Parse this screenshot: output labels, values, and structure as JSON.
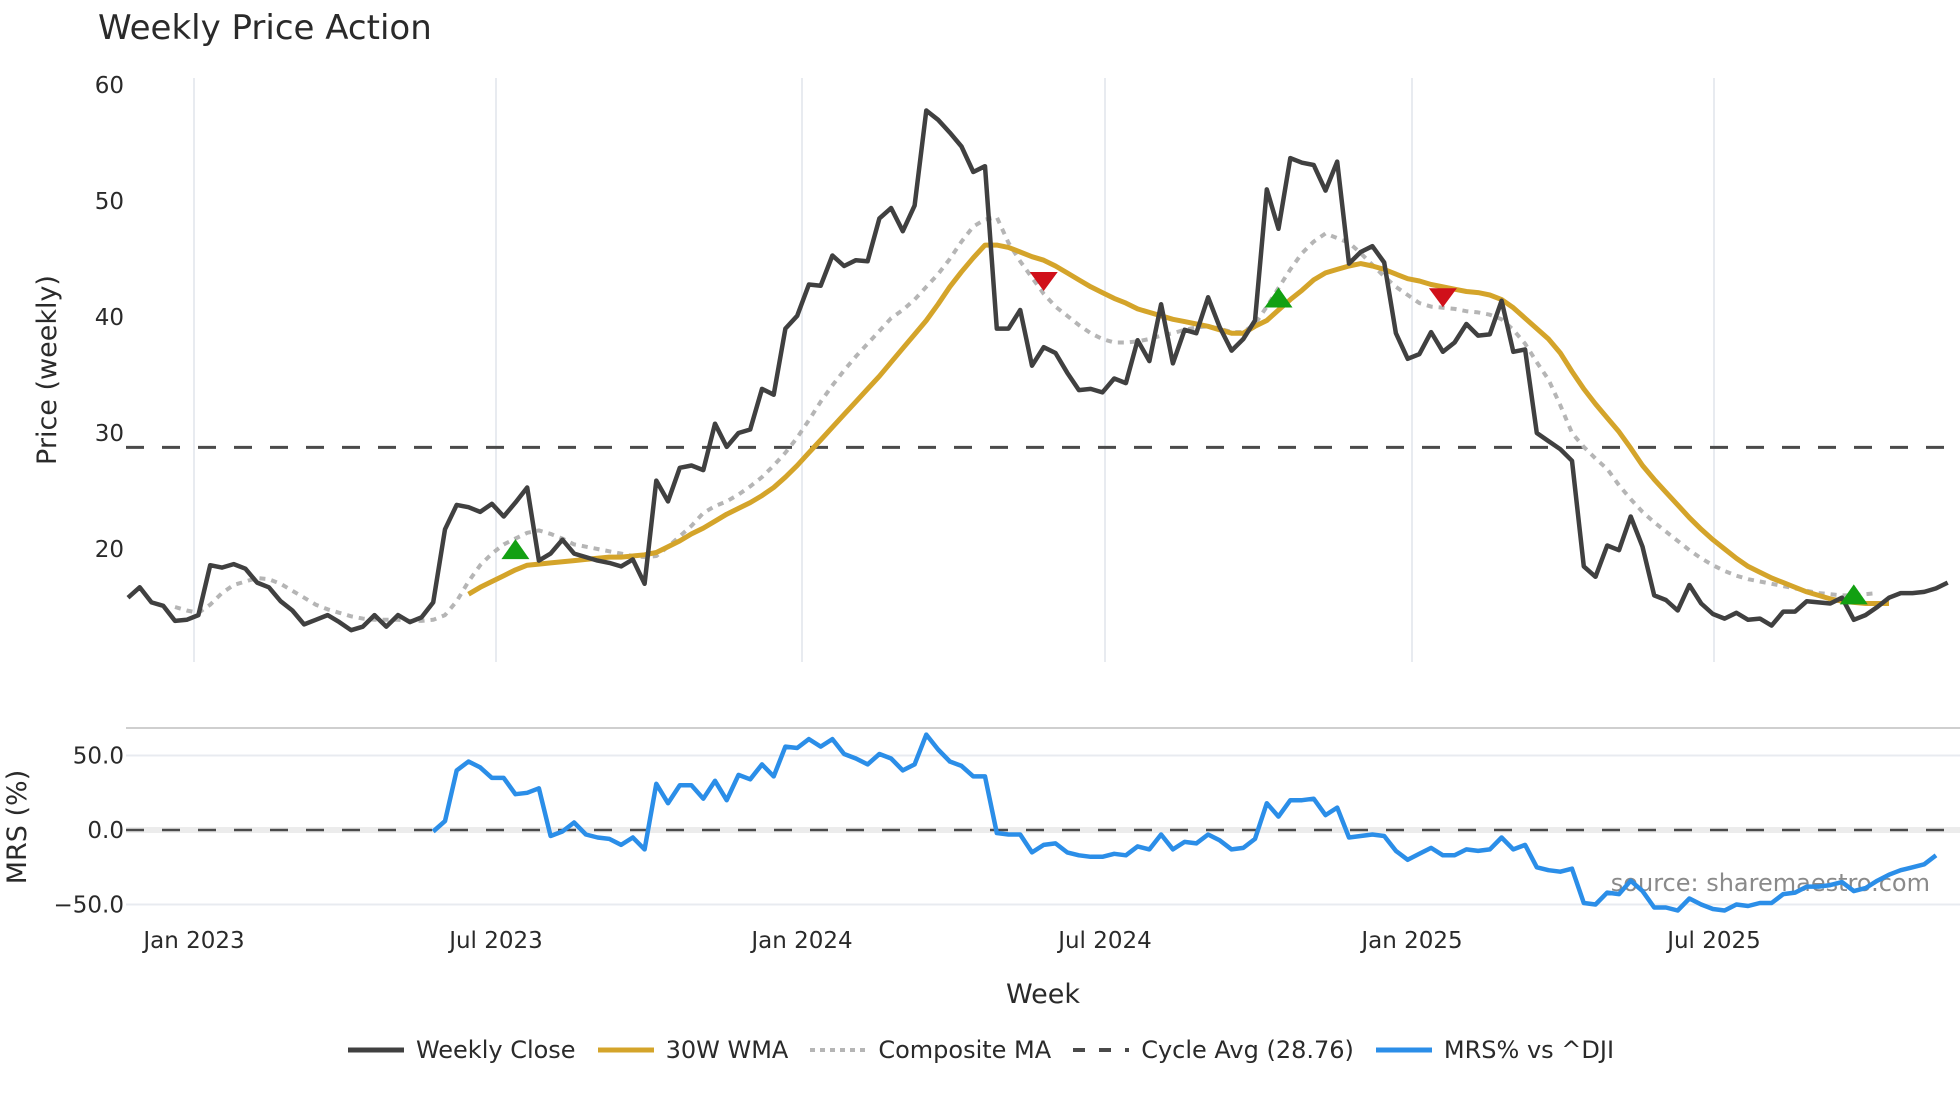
{
  "title": "Weekly Price Action",
  "colors": {
    "weekly_close": "#404040",
    "wma": "#d4a42a",
    "composite_ma": "#b5b5b5",
    "cycle_avg": "#4a4a4a",
    "mrs": "#2b8ee8",
    "buy_marker": "#12a012",
    "sell_marker": "#d0101a",
    "grid": "#e8ebf0"
  },
  "legend": [
    {
      "key": "weekly_close",
      "label": "Weekly Close",
      "style": "solid"
    },
    {
      "key": "wma",
      "label": "30W WMA",
      "style": "solid"
    },
    {
      "key": "composite_ma",
      "label": "Composite MA",
      "style": "dotted"
    },
    {
      "key": "cycle_avg",
      "label": "Cycle Avg (28.76)",
      "style": "dashed"
    },
    {
      "key": "mrs",
      "label": "MRS% vs ^DJI",
      "style": "solid"
    }
  ],
  "watermark": "source: sharemaestro.com",
  "chart_data": [
    {
      "type": "line",
      "title": "Weekly Price Action",
      "xlabel": "Week",
      "ylabel": "Price (weekly)",
      "ylim": [
        10.5,
        61
      ],
      "yticks": [
        20,
        30,
        40,
        50,
        60
      ],
      "xticks": [
        "Jan 2023",
        "Jul 2023",
        "Jan 2024",
        "Jul 2024",
        "Jan 2025",
        "Jul 2025"
      ],
      "grid": true,
      "x_start": "2022-11-21",
      "x_step_weeks": 1,
      "cycle_avg": 28.76,
      "series": [
        {
          "name": "Weekly Close",
          "key": "weekly_close",
          "start_index": 0,
          "values": [
            15.8,
            16.7,
            15.4,
            15.1,
            13.8,
            13.9,
            14.3,
            18.6,
            18.4,
            18.7,
            18.3,
            17.1,
            16.7,
            15.5,
            14.7,
            13.5,
            13.9,
            14.3,
            13.7,
            13.0,
            13.3,
            14.3,
            13.3,
            14.3,
            13.7,
            14.1,
            15.4,
            21.7,
            23.8,
            23.6,
            23.2,
            23.9,
            22.8,
            24.0,
            25.3,
            19.0,
            19.6,
            20.8,
            19.6,
            19.3,
            19.0,
            18.8,
            18.5,
            19.1,
            17.0,
            25.9,
            24.1,
            27.0,
            27.2,
            26.8,
            30.8,
            28.8,
            30.0,
            30.3,
            33.8,
            33.3,
            39.0,
            40.1,
            42.8,
            42.7,
            45.3,
            44.4,
            44.9,
            44.8,
            48.5,
            49.4,
            47.4,
            49.6,
            57.8,
            57.0,
            55.9,
            54.7,
            52.5,
            53.0,
            39.0,
            39.0,
            40.6,
            35.8,
            37.4,
            36.9,
            35.2,
            33.7,
            33.8,
            33.5,
            34.7,
            34.3,
            38.0,
            36.2,
            41.1,
            36.0,
            38.9,
            38.6,
            41.7,
            39.1,
            37.1,
            38.1,
            39.7,
            51.0,
            47.6,
            53.7,
            53.3,
            53.1,
            50.9,
            53.4,
            44.6,
            45.6,
            46.1,
            44.7,
            38.6,
            36.4,
            36.8,
            38.7,
            37.0,
            37.8,
            39.4,
            38.4,
            38.5,
            41.4,
            37.0,
            37.2,
            30.0,
            29.3,
            28.6,
            27.6,
            18.5,
            17.6,
            20.3,
            19.9,
            22.8,
            20.2,
            16.0,
            15.6,
            14.7,
            16.9,
            15.3,
            14.4,
            14.0,
            14.5,
            13.9,
            14.0,
            13.4,
            14.6,
            14.6,
            15.5,
            15.4,
            15.3,
            15.8,
            13.9,
            14.3,
            15.0,
            15.8,
            16.2,
            16.2,
            16.3,
            16.6,
            17.1
          ]
        },
        {
          "name": "30W WMA",
          "key": "wma",
          "start_index": 29,
          "values": [
            16.1,
            16.7,
            17.2,
            17.7,
            18.2,
            18.6,
            18.7,
            18.8,
            18.9,
            19.0,
            19.1,
            19.2,
            19.3,
            19.3,
            19.4,
            19.5,
            19.7,
            20.2,
            20.7,
            21.3,
            21.8,
            22.4,
            23.0,
            23.5,
            24.0,
            24.6,
            25.3,
            26.2,
            27.2,
            28.3,
            29.4,
            30.5,
            31.6,
            32.7,
            33.8,
            34.9,
            36.1,
            37.3,
            38.5,
            39.7,
            41.1,
            42.6,
            43.9,
            45.1,
            46.2,
            46.2,
            46.0,
            45.6,
            45.2,
            44.9,
            44.4,
            43.8,
            43.2,
            42.6,
            42.1,
            41.6,
            41.2,
            40.7,
            40.4,
            40.1,
            39.8,
            39.6,
            39.4,
            39.2,
            38.9,
            38.6,
            38.6,
            39.2,
            39.7,
            40.6,
            41.5,
            42.3,
            43.2,
            43.8,
            44.1,
            44.4,
            44.6,
            44.4,
            44.1,
            43.7,
            43.3,
            43.1,
            42.8,
            42.6,
            42.4,
            42.2,
            42.1,
            41.9,
            41.5,
            40.8,
            39.9,
            39.0,
            38.1,
            36.9,
            35.3,
            33.8,
            32.5,
            31.3,
            30.1,
            28.7,
            27.2,
            26.0,
            24.9,
            23.8,
            22.7,
            21.7,
            20.8,
            20.0,
            19.2,
            18.5,
            18.0,
            17.5,
            17.1,
            16.7,
            16.3,
            16.0,
            15.7,
            15.5,
            15.4,
            15.3,
            15.3,
            15.3
          ]
        },
        {
          "name": "Composite MA",
          "key": "composite_ma",
          "start_index": 4,
          "values": [
            15.0,
            14.7,
            14.5,
            15.2,
            16.2,
            16.9,
            17.2,
            17.5,
            17.4,
            17.0,
            16.4,
            15.8,
            15.2,
            14.8,
            14.5,
            14.2,
            14.0,
            13.9,
            13.9,
            13.9,
            13.8,
            13.8,
            13.9,
            14.3,
            15.5,
            17.2,
            18.6,
            19.6,
            20.4,
            20.9,
            21.4,
            21.6,
            21.3,
            20.9,
            20.4,
            20.2,
            20.0,
            19.8,
            19.6,
            19.4,
            19.3,
            19.4,
            20.2,
            21.1,
            22.0,
            23.1,
            23.7,
            24.1,
            24.7,
            25.4,
            26.2,
            27.2,
            28.3,
            29.6,
            31.1,
            32.7,
            34.1,
            35.4,
            36.6,
            37.7,
            38.8,
            39.9,
            40.6,
            41.5,
            42.6,
            43.7,
            45.0,
            46.5,
            47.8,
            48.4,
            48.6,
            46.4,
            44.8,
            43.4,
            42.0,
            40.9,
            40.1,
            39.3,
            38.6,
            38.1,
            37.8,
            37.8,
            37.9,
            38.1,
            38.4,
            38.6,
            38.9,
            39.1,
            39.2,
            39.0,
            38.7,
            38.7,
            39.4,
            40.9,
            42.5,
            44.1,
            45.5,
            46.5,
            47.2,
            46.8,
            46.4,
            45.5,
            44.5,
            43.5,
            42.6,
            41.9,
            41.2,
            40.9,
            40.8,
            40.7,
            40.5,
            40.4,
            40.2,
            39.8,
            38.9,
            37.7,
            36.1,
            34.6,
            32.4,
            30.0,
            28.8,
            27.8,
            26.9,
            25.5,
            24.3,
            23.2,
            22.3,
            21.5,
            20.7,
            19.9,
            19.2,
            18.6,
            18.1,
            17.7,
            17.4,
            17.2,
            17.0,
            16.8,
            16.6,
            16.4,
            16.2,
            16.1,
            16.0,
            16.0,
            16.1,
            16.2
          ]
        }
      ],
      "markers": [
        {
          "type": "buy",
          "index": 33,
          "value": 19.9
        },
        {
          "type": "sell",
          "index": 78,
          "value": 43.1
        },
        {
          "type": "buy",
          "index": 98,
          "value": 41.6
        },
        {
          "type": "sell",
          "index": 112,
          "value": 41.7
        },
        {
          "type": "buy",
          "index": 147,
          "value": 16.0
        }
      ]
    },
    {
      "type": "line",
      "title": "",
      "ylabel": "MRS (%)",
      "ylim": [
        -60,
        70
      ],
      "yticks": [
        "50.0",
        "0.0",
        "-50.0"
      ],
      "ytick_values": [
        50,
        0,
        -50
      ],
      "zero_line": 0,
      "series": [
        {
          "name": "MRS% vs ^DJI",
          "key": "mrs",
          "start_index": 26,
          "values": [
            -1,
            6,
            40,
            46,
            42,
            35,
            35,
            24,
            25,
            28,
            -4,
            -1,
            5,
            -3,
            -5,
            -6,
            -10,
            -5,
            -13,
            31,
            18,
            30,
            30,
            21,
            33,
            20,
            37,
            34,
            44,
            36,
            56,
            55,
            61,
            56,
            61,
            51,
            48,
            44,
            51,
            48,
            40,
            44,
            64,
            54,
            46,
            43,
            36,
            36,
            -2,
            -3,
            -3,
            -15,
            -10,
            -9,
            -15,
            -17,
            -18,
            -18,
            -16,
            -17,
            -11,
            -13,
            -3,
            -13,
            -8,
            -9,
            -3,
            -7,
            -13,
            -12,
            -6,
            18,
            9,
            20,
            20,
            21,
            10,
            15,
            -5,
            -4,
            -3,
            -4,
            -14,
            -20,
            -16,
            -12,
            -17,
            -17,
            -13,
            -14,
            -13,
            -5,
            -13,
            -10,
            -25,
            -27,
            -28,
            -26,
            -49,
            -50,
            -42,
            -43,
            -34,
            -41,
            -52,
            -52,
            -54,
            -46,
            -50,
            -53,
            -54,
            -50,
            -51,
            -49,
            -49,
            -43,
            -42,
            -38,
            -38,
            -37,
            -35,
            -41,
            -39,
            -34,
            -30,
            -27,
            -25,
            -23,
            -17
          ]
        }
      ]
    }
  ]
}
